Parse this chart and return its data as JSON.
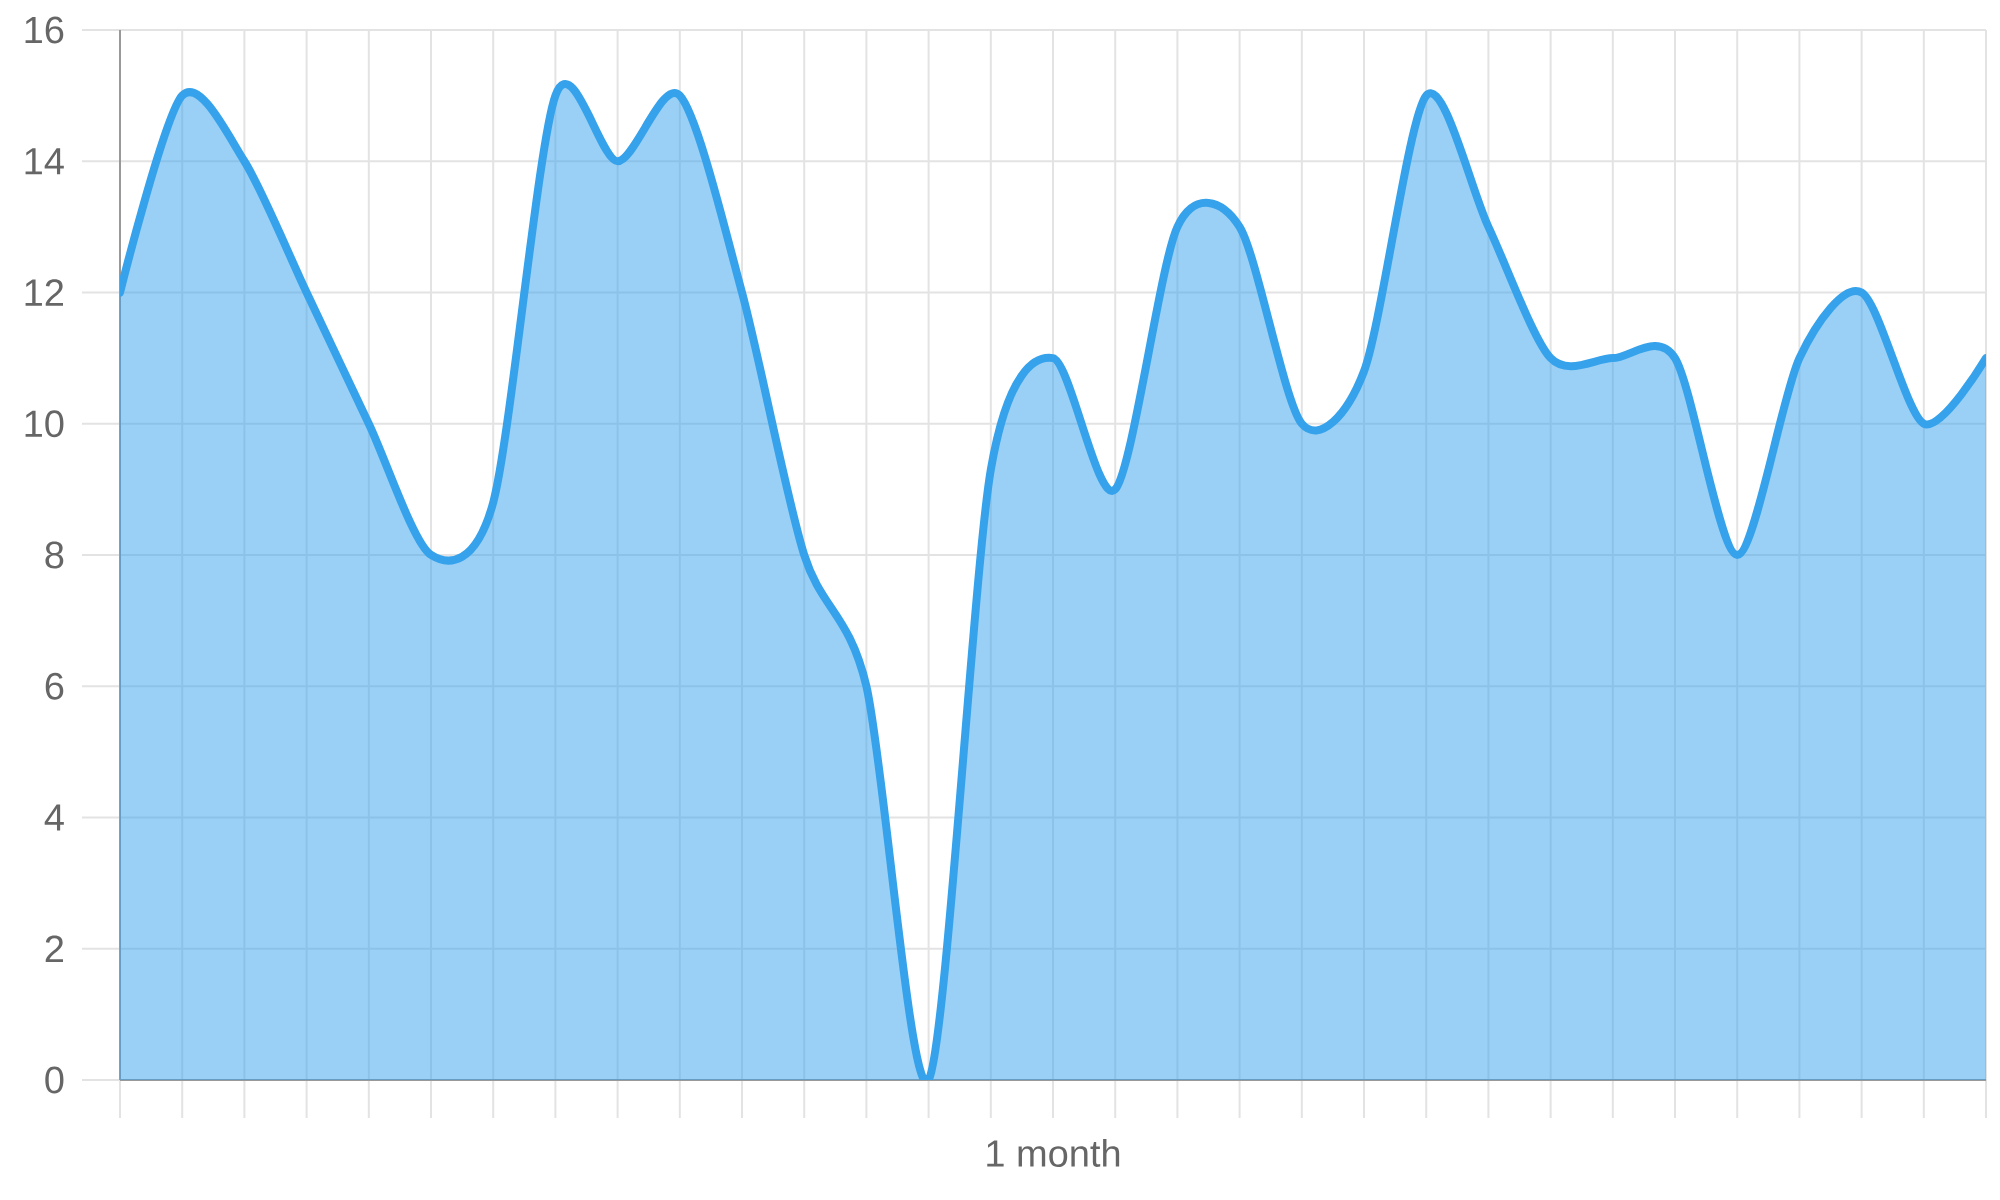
{
  "chart_data": {
    "type": "area",
    "xlabel": "1 month",
    "categories": [
      null,
      null,
      null,
      null,
      null,
      null,
      null,
      null,
      null,
      null,
      null,
      null,
      null,
      null,
      null,
      null,
      null,
      null,
      null,
      null,
      null,
      null,
      null,
      null,
      null,
      null,
      null,
      null,
      null,
      null,
      null
    ],
    "values": [
      12,
      15,
      14,
      12,
      10,
      8,
      8.8,
      15,
      14,
      15,
      12,
      8,
      6,
      0,
      9.3,
      11,
      9,
      13,
      13,
      10,
      10.8,
      15,
      13,
      11,
      11,
      11,
      8,
      11,
      12,
      10,
      11
    ],
    "color": "#36a2eb",
    "ylim": [
      0,
      16
    ],
    "yticks": [
      0,
      2,
      4,
      6,
      8,
      10,
      12,
      14,
      16
    ],
    "grid": true,
    "tick_labels": "y"
  }
}
